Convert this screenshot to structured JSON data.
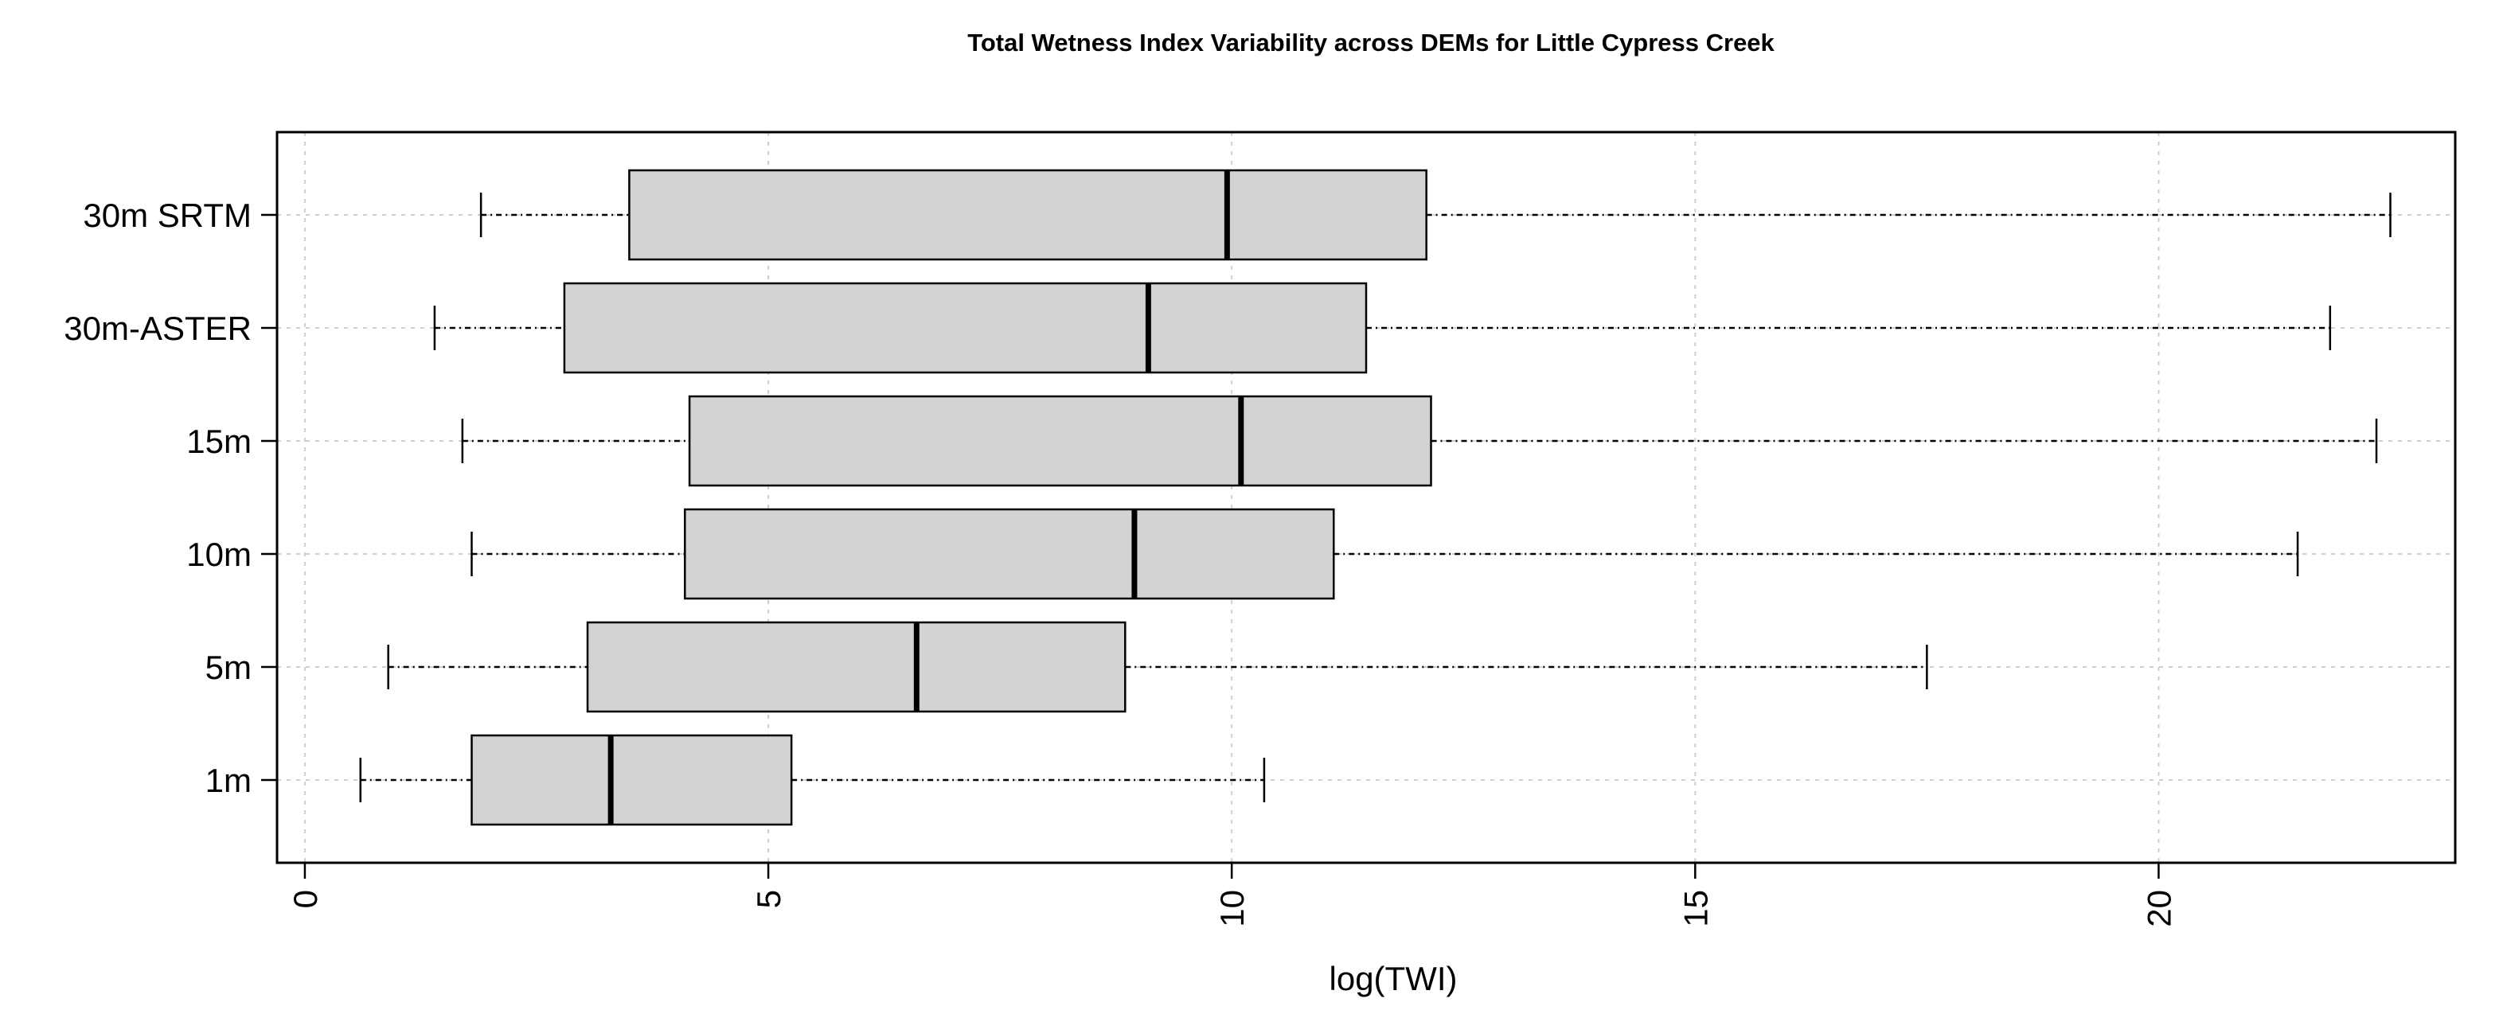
{
  "chart_data": {
    "type": "boxplot",
    "orientation": "horizontal",
    "title": "Total Wetness Index Variability across DEMs for Little Cypress Creek",
    "xlabel": "log(TWI)",
    "ylabel": "",
    "xlim": [
      -0.3,
      23.2
    ],
    "xticks": [
      0,
      5,
      10,
      15,
      20
    ],
    "grid": true,
    "colors": {
      "box_fill": "#d3d3d3",
      "box_stroke": "#000000",
      "grid": "#cfcfcf"
    },
    "categories": [
      "1m",
      "5m",
      "10m",
      "15m",
      "30m-ASTER",
      "30m SRTM"
    ],
    "series": [
      {
        "category": "1m",
        "min": 0.6,
        "q1": 1.8,
        "median": 3.3,
        "q3": 5.25,
        "max": 10.35
      },
      {
        "category": "5m",
        "min": 0.9,
        "q1": 3.05,
        "median": 6.6,
        "q3": 8.85,
        "max": 17.5
      },
      {
        "category": "10m",
        "min": 1.8,
        "q1": 4.1,
        "median": 8.95,
        "q3": 11.1,
        "max": 21.5
      },
      {
        "category": "15m",
        "min": 1.7,
        "q1": 4.15,
        "median": 10.1,
        "q3": 12.15,
        "max": 22.35
      },
      {
        "category": "30m-ASTER",
        "min": 1.4,
        "q1": 2.8,
        "median": 9.1,
        "q3": 11.45,
        "max": 21.85
      },
      {
        "category": "30m SRTM",
        "min": 1.9,
        "q1": 3.5,
        "median": 9.95,
        "q3": 12.1,
        "max": 22.5
      }
    ]
  }
}
